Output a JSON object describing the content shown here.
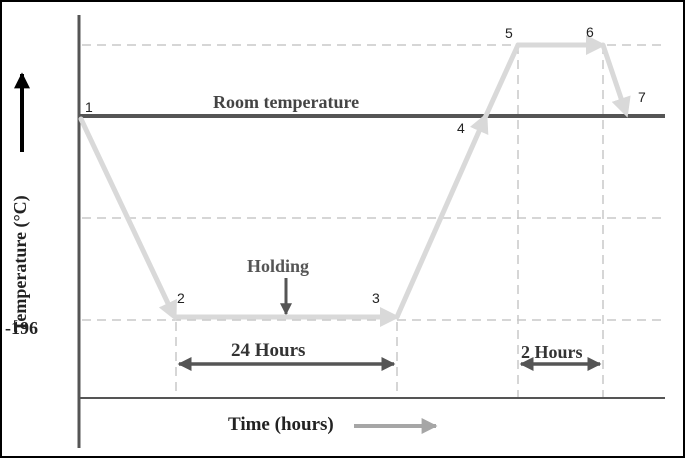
{
  "title": "",
  "axes": {
    "y_label": "Temperature (°C)",
    "x_label": "Time (hours)",
    "y_tick": "-196"
  },
  "labels": {
    "room_temperature": "Room temperature",
    "holding": "Holding",
    "duration_1": "24 Hours",
    "duration_2": "2 Hours"
  },
  "points": [
    "1",
    "2",
    "3",
    "4",
    "5",
    "6",
    "7"
  ],
  "colors": {
    "path": "#d9d9d9",
    "room_line": "#555555",
    "axis": "#555555",
    "dashed": "#c8c8c8",
    "dimension": "#555555",
    "time_arrow": "#a6a6a6",
    "y_arrow": "#000000",
    "text": "#222222"
  }
}
